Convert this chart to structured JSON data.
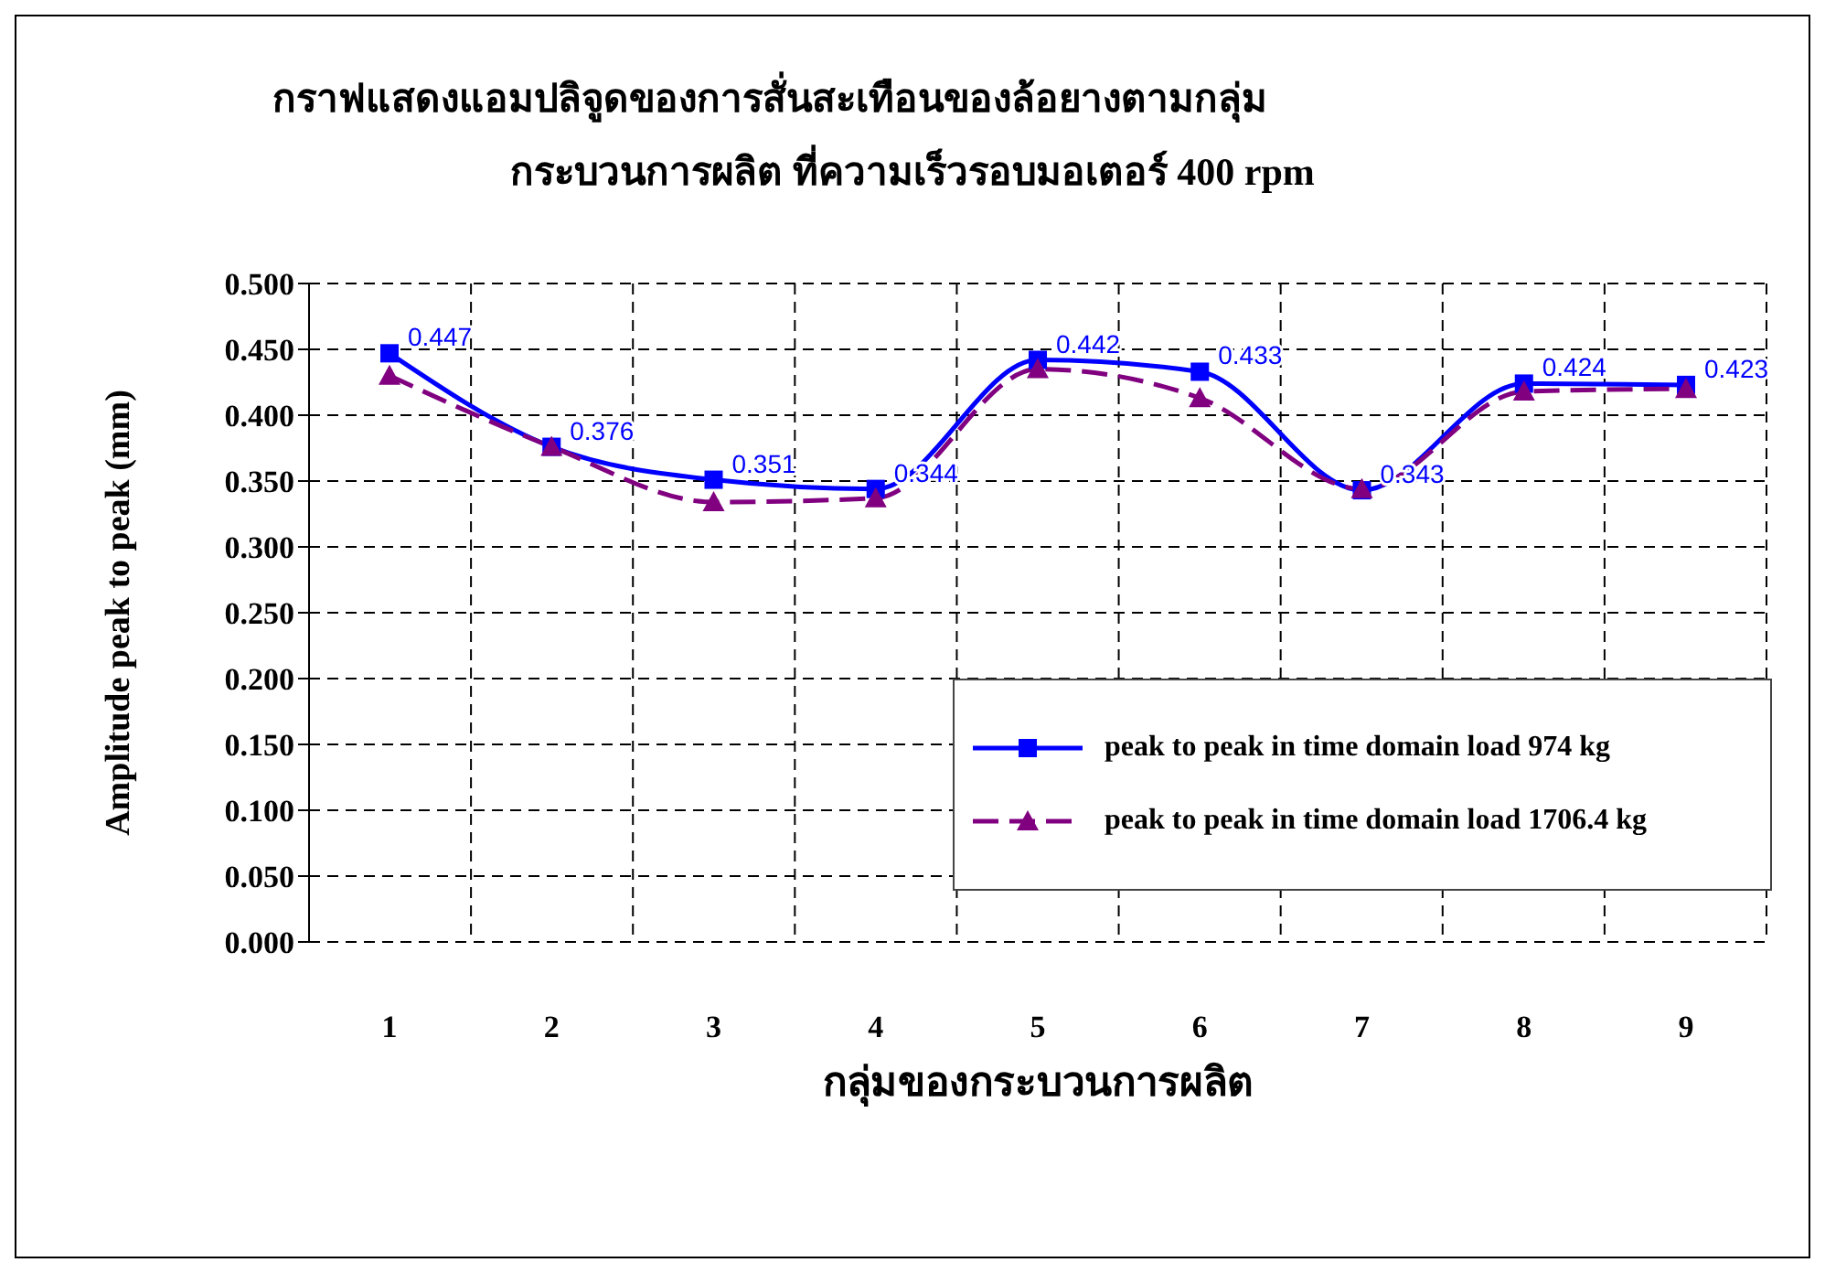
{
  "chart_data": {
    "type": "line",
    "title": "กราฟแสดงแอมปลิจูดของการสั่นสะเทือนของล้อยางตามกลุ่ม\nกระบวนการผลิต ที่ความเร็วรอบมอเตอร์ 400 rpm",
    "xlabel": "กลุ่มของกระบวนการผลิต",
    "ylabel": "Amplitude peak to peak (mm)",
    "categories": [
      "1",
      "2",
      "3",
      "4",
      "5",
      "6",
      "7",
      "8",
      "9"
    ],
    "series": [
      {
        "name": "peak to peak in time domain load 974 kg",
        "color": "#0000ff",
        "marker": "square",
        "line_style": "solid",
        "values": [
          0.447,
          0.376,
          0.351,
          0.344,
          0.442,
          0.433,
          0.343,
          0.424,
          0.423
        ],
        "value_labels": [
          "0.447",
          "0.376",
          "0.351",
          "0.344",
          "0.442",
          "0.433",
          "0.343",
          "0.424",
          "0.423"
        ]
      },
      {
        "name": "peak to peak in time domain load 1706.4 kg",
        "color": "#800080",
        "marker": "triangle",
        "line_style": "dashed",
        "values": [
          0.43,
          0.376,
          0.334,
          0.337,
          0.435,
          0.413,
          0.344,
          0.418,
          0.42
        ]
      }
    ],
    "ylim": [
      0,
      0.5
    ],
    "yticks": [
      {
        "value": 0,
        "label": "0.000"
      },
      {
        "value": 0.05,
        "label": "0.050"
      },
      {
        "value": 0.1,
        "label": "0.100"
      },
      {
        "value": 0.15,
        "label": "0.150"
      },
      {
        "value": 0.2,
        "label": "0.200"
      },
      {
        "value": 0.25,
        "label": "0.250"
      },
      {
        "value": 0.3,
        "label": "0.300"
      },
      {
        "value": 0.35,
        "label": "0.350"
      },
      {
        "value": 0.4,
        "label": "0.400"
      },
      {
        "value": 0.45,
        "label": "0.450"
      },
      {
        "value": 0.5,
        "label": "0.500"
      }
    ],
    "grid": true,
    "legend": "right"
  }
}
